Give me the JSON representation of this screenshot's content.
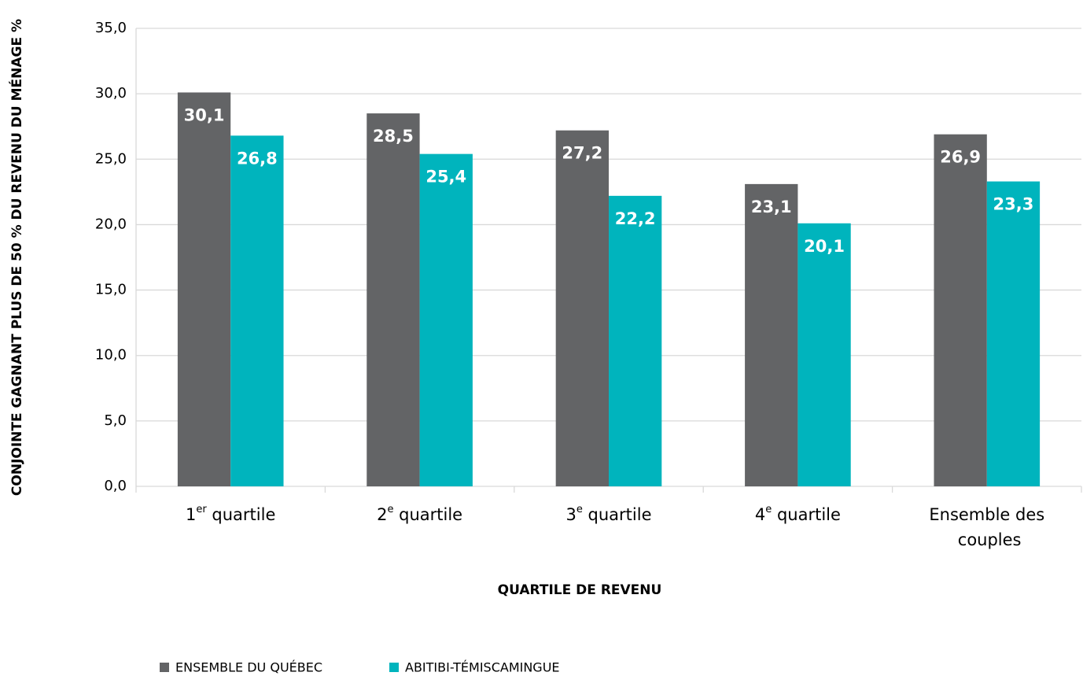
{
  "chart_data": {
    "type": "bar",
    "y_axis_label": "CONJOINTE GAGNANT PLUS DE 50 % DU REVENU DU MÉNAGE %",
    "x_axis_label": "QUARTILE DE REVENU",
    "categories": [
      "1er quartile",
      "2e quartile",
      "3e quartile",
      "4e quartile",
      "Ensemble des couples"
    ],
    "series": [
      {
        "name": "ENSEMBLE DU QUÉBEC",
        "color": "#636466",
        "values": [
          30.1,
          28.5,
          27.2,
          23.1,
          26.9
        ],
        "value_labels": [
          "30,1",
          "28,5",
          "27,2",
          "23,1",
          "26,9"
        ]
      },
      {
        "name": "ABITIBI-TÉMISCAMINGUE",
        "color": "#00b4bd",
        "values": [
          26.8,
          25.4,
          22.2,
          20.1,
          23.3
        ],
        "value_labels": [
          "26,8",
          "25,4",
          "22,2",
          "20,1",
          "23,3"
        ]
      }
    ],
    "ylim": [
      0,
      35
    ],
    "yticks": [
      {
        "value": 0,
        "label": "0,0"
      },
      {
        "value": 5,
        "label": "5,0"
      },
      {
        "value": 10,
        "label": "10,0"
      },
      {
        "value": 15,
        "label": "15,0"
      },
      {
        "value": 20,
        "label": "20,0"
      },
      {
        "value": 25,
        "label": "25,0"
      },
      {
        "value": 30,
        "label": "30,0"
      },
      {
        "value": 35,
        "label": "35,0"
      }
    ],
    "grid": true,
    "legend": "bottom"
  }
}
